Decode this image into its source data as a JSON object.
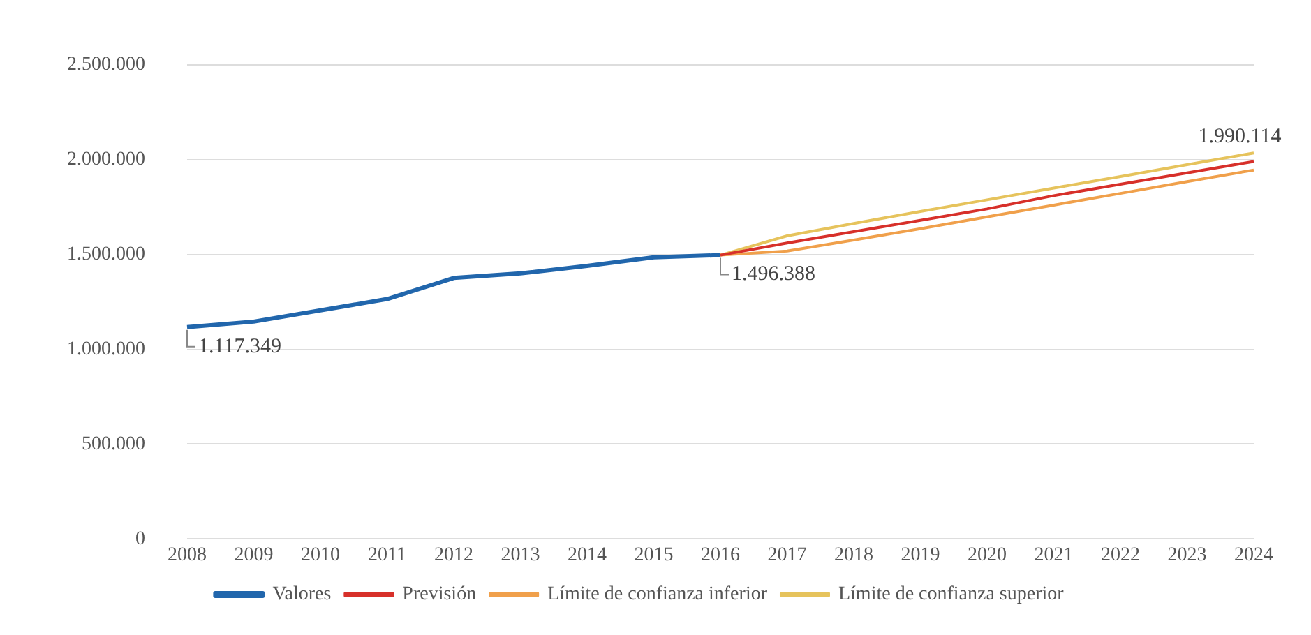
{
  "chart_data": {
    "type": "line",
    "categories": [
      "2008",
      "2009",
      "2010",
      "2011",
      "2012",
      "2013",
      "2014",
      "2015",
      "2016",
      "2017",
      "2018",
      "2019",
      "2020",
      "2021",
      "2022",
      "2023",
      "2024"
    ],
    "series": [
      {
        "name": "Valores",
        "color": "#2166ac",
        "values": [
          1117349,
          1146000,
          1205000,
          1265000,
          1376000,
          1400000,
          1440000,
          1485000,
          1496388,
          null,
          null,
          null,
          null,
          null,
          null,
          null,
          null
        ]
      },
      {
        "name": "Previsión",
        "color": "#d7302a",
        "values": [
          null,
          null,
          null,
          null,
          null,
          null,
          null,
          null,
          1496388,
          1560000,
          1620000,
          1680000,
          1740000,
          1810000,
          1870000,
          1930000,
          1990114
        ]
      },
      {
        "name": "Límite de confianza inferior",
        "color": "#f0a04b",
        "values": [
          null,
          null,
          null,
          null,
          null,
          null,
          null,
          null,
          1496388,
          1518000,
          1576000,
          1636000,
          1698000,
          1760000,
          1822000,
          1884000,
          1945000
        ]
      },
      {
        "name": "Límite de confianza superior",
        "color": "#e6c35c",
        "values": [
          null,
          null,
          null,
          null,
          null,
          null,
          null,
          null,
          1496388,
          1598000,
          1663000,
          1727000,
          1788000,
          1850000,
          1911000,
          1973000,
          2035000
        ]
      }
    ],
    "ylim": [
      0,
      2500000
    ],
    "yticks": [
      {
        "value": 0,
        "label": "0"
      },
      {
        "value": 500000,
        "label": "500.000"
      },
      {
        "value": 1000000,
        "label": "1.000.000"
      },
      {
        "value": 1500000,
        "label": "1.500.000"
      },
      {
        "value": 2000000,
        "label": "2.000.000"
      },
      {
        "value": 2500000,
        "label": "2.500.000"
      }
    ],
    "annotations": [
      {
        "text": "1.117.349",
        "x": "2008",
        "y": 1117349
      },
      {
        "text": "1.496.388",
        "x": "2016",
        "y": 1496388
      },
      {
        "text": "1.990.114",
        "x": "2024",
        "y": 1990114
      }
    ],
    "grid": "y",
    "legend": "bottom",
    "marker": "none",
    "line_style": "solid"
  }
}
